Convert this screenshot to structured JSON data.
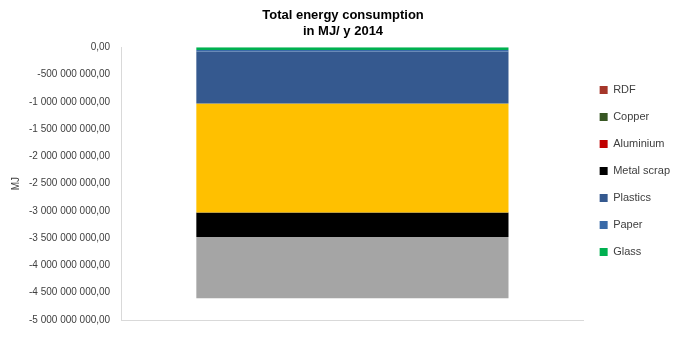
{
  "chart_data": {
    "type": "bar",
    "stacked": true,
    "title": [
      "Total energy consumption",
      "in MJ/ y 2014"
    ],
    "y_label": "MJ",
    "categories": [
      null
    ],
    "series": [
      {
        "name": "Glass",
        "color": "#00b050",
        "values": [
          -50000000
        ]
      },
      {
        "name": "Paper",
        "color": "#3a6aa8",
        "values": [
          -30000000
        ]
      },
      {
        "name": "Plastics",
        "color": "#35598f",
        "values": [
          -950000000
        ]
      },
      {
        "name": null,
        "color": "#ffc000",
        "values": [
          -2000000000
        ]
      },
      {
        "name": "Metal scrap",
        "color": "#000000",
        "values": [
          -450000000
        ]
      },
      {
        "name": "Aluminium",
        "color": "#c00000",
        "values": [
          0
        ]
      },
      {
        "name": "Copper",
        "color": "#375623",
        "values": [
          0
        ]
      },
      {
        "name": "RDF",
        "color": "#a5362a",
        "values": [
          0
        ]
      },
      {
        "name": null,
        "color": "#a5a5a5",
        "values": [
          -1120000000
        ]
      }
    ],
    "ylim": [
      -5000000000,
      0
    ],
    "yticks": [
      {
        "value": 0,
        "label": "0,00"
      },
      {
        "value": -500000000,
        "label": "-500 000 000,00"
      },
      {
        "value": -1000000000,
        "label": "-1 000 000 000,00"
      },
      {
        "value": -1500000000,
        "label": "-1 500 000 000,00"
      },
      {
        "value": -2000000000,
        "label": "-2 000 000 000,00"
      },
      {
        "value": -2500000000,
        "label": "-2 500 000 000,00"
      },
      {
        "value": -3000000000,
        "label": "-3 000 000 000,00"
      },
      {
        "value": -3500000000,
        "label": "-3 500 000 000,00"
      },
      {
        "value": -4000000000,
        "label": "-4 000 000 000,00"
      },
      {
        "value": -4500000000,
        "label": "-4 500 000 000,00"
      },
      {
        "value": -5000000000,
        "label": "-5 000 000 000,00"
      }
    ],
    "grid": false,
    "legend": "right"
  }
}
